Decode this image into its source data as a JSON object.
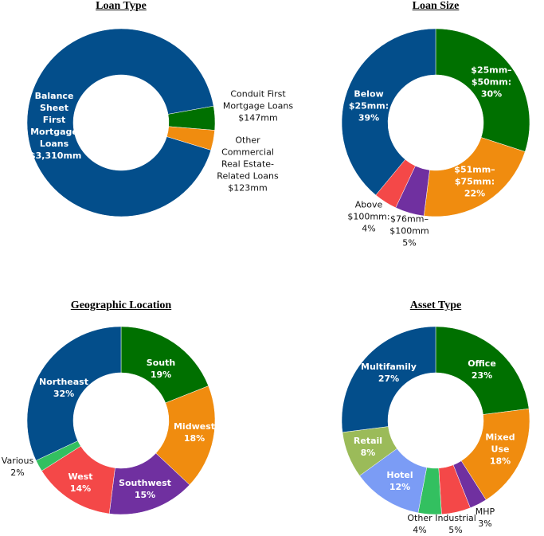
{
  "chart_data": [
    {
      "type": "donut",
      "title": "Loan Type",
      "categories": [
        "Balance Sheet First Mortgage Loans",
        "Conduit First Mortgage Loans",
        "Other Commercial Real Estate-Related Loans"
      ],
      "values": [
        3310,
        147,
        123
      ],
      "value_labels": [
        "$3,310mm",
        "$147mm",
        "$123mm"
      ],
      "colors": [
        "#034e8b",
        "#007000",
        "#f08c0f"
      ]
    },
    {
      "type": "donut",
      "title": "Loan Size",
      "categories": [
        "$25mm–$50mm:",
        "$51mm–$75mm:",
        "$76mm–$100mm",
        "Above $100mm:",
        "Below $25mm:"
      ],
      "values": [
        30,
        22,
        5,
        4,
        39
      ],
      "value_labels": [
        "30%",
        "22%",
        "5%",
        "4%",
        "39%"
      ],
      "colors": [
        "#007000",
        "#f08c0f",
        "#7030a0",
        "#f44848",
        "#034e8b"
      ]
    },
    {
      "type": "donut",
      "title": "Geographic Location",
      "categories": [
        "South",
        "Midwest",
        "Southwest",
        "West",
        "Various",
        "Northeast"
      ],
      "values": [
        19,
        18,
        15,
        14,
        2,
        32
      ],
      "value_labels": [
        "19%",
        "18%",
        "15%",
        "14%",
        "2%",
        "32%"
      ],
      "colors": [
        "#007000",
        "#f08c0f",
        "#7030a0",
        "#f44848",
        "#33c060",
        "#034e8b"
      ]
    },
    {
      "type": "donut",
      "title": "Asset Type",
      "categories": [
        "Office",
        "Mixed Use",
        "MHP",
        "Industrial",
        "Other",
        "Hotel",
        "Retail",
        "Multifamily"
      ],
      "values": [
        23,
        18,
        3,
        5,
        4,
        12,
        8,
        27
      ],
      "value_labels": [
        "23%",
        "18%",
        "3%",
        "5%",
        "4%",
        "12%",
        "8%",
        "27%"
      ],
      "colors": [
        "#007000",
        "#f08c0f",
        "#7030a0",
        "#f44848",
        "#33c060",
        "#7b9cf5",
        "#9bbb59",
        "#034e8b"
      ]
    }
  ]
}
